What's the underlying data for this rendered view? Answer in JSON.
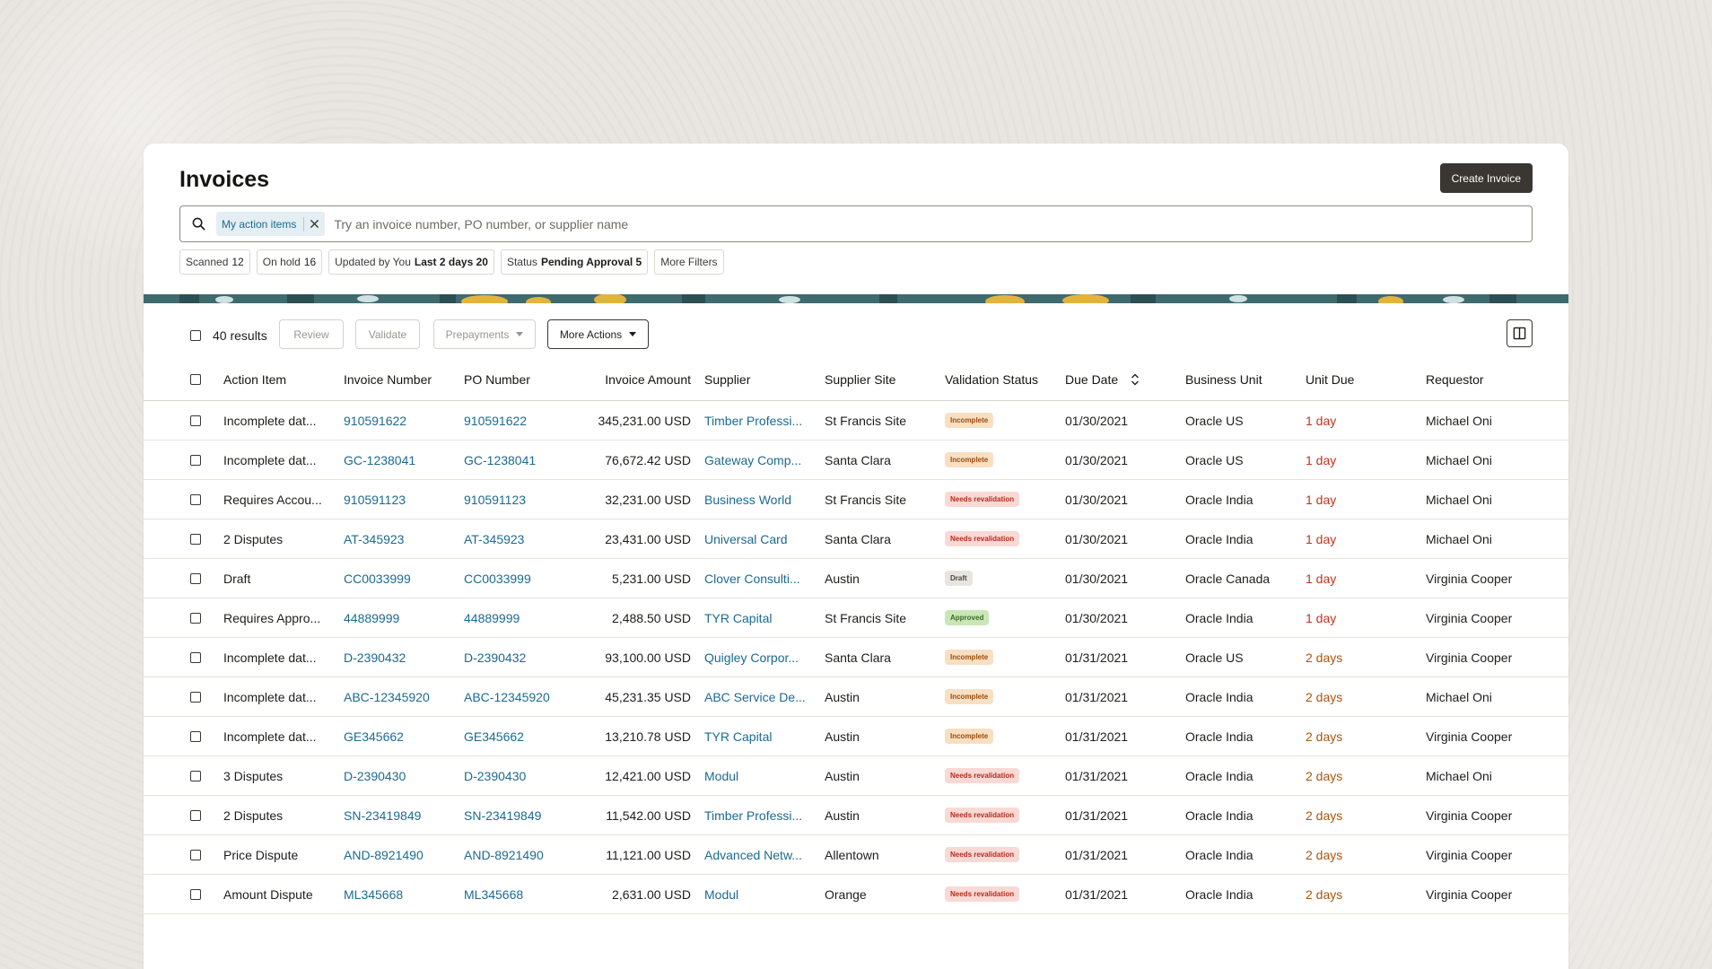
{
  "page": {
    "title": "Invoices",
    "create_button": "Create Invoice"
  },
  "search": {
    "chip_label": "My action items",
    "placeholder": "Try an invoice number, PO number, or supplier name"
  },
  "filters": [
    {
      "label": "Scanned",
      "value": "12",
      "bold": false
    },
    {
      "label": "On hold",
      "value": "16",
      "bold": false
    },
    {
      "label": "Updated by You",
      "value": "Last 2 days 20",
      "bold": true
    },
    {
      "label": "Status",
      "value": "Pending Approval 5",
      "bold": true
    },
    {
      "label": "More Filters",
      "value": "",
      "bold": false
    }
  ],
  "toolbar": {
    "results": "40 results",
    "review": "Review",
    "validate": "Validate",
    "prepayments": "Prepayments",
    "more_actions": "More Actions"
  },
  "columns": {
    "action_item": "Action Item",
    "invoice_number": "Invoice Number",
    "po_number": "PO Number",
    "invoice_amount": "Invoice Amount",
    "supplier": "Supplier",
    "supplier_site": "Supplier Site",
    "validation_status": "Validation Status",
    "due_date": "Due Date",
    "business_unit": "Business Unit",
    "unit_due": "Unit Due",
    "requestor": "Requestor"
  },
  "rows": [
    {
      "action": "Incomplete dat...",
      "invoice": "910591622",
      "po": "910591622",
      "amount": "345,231.00 USD",
      "supplier": "Timber Professi...",
      "site": "St Francis Site",
      "status": "Incomplete",
      "status_type": "incomplete",
      "due": "01/30/2021",
      "bu": "Oracle US",
      "unit_due": "1 day",
      "unit_type": "red",
      "requestor": "Michael Oni"
    },
    {
      "action": "Incomplete dat...",
      "invoice": "GC-1238041",
      "po": "GC-1238041",
      "amount": "76,672.42 USD",
      "supplier": "Gateway Comp...",
      "site": "Santa Clara",
      "status": "Incomplete",
      "status_type": "incomplete",
      "due": "01/30/2021",
      "bu": "Oracle US",
      "unit_due": "1 day",
      "unit_type": "red",
      "requestor": "Michael Oni"
    },
    {
      "action": "Requires Accou...",
      "invoice": "910591123",
      "po": "910591123",
      "amount": "32,231.00 USD",
      "supplier": "Business World",
      "site": "St Francis Site",
      "status": "Needs revalidation",
      "status_type": "needs",
      "due": "01/30/2021",
      "bu": "Oracle India",
      "unit_due": "1 day",
      "unit_type": "red",
      "requestor": "Michael Oni"
    },
    {
      "action": "2 Disputes",
      "invoice": "AT-345923",
      "po": "AT-345923",
      "amount": "23,431.00 USD",
      "supplier": "Universal Card",
      "site": "Santa Clara",
      "status": "Needs revalidation",
      "status_type": "needs",
      "due": "01/30/2021",
      "bu": "Oracle India",
      "unit_due": "1 day",
      "unit_type": "red",
      "requestor": "Michael Oni"
    },
    {
      "action": "Draft",
      "invoice": "CC0033999",
      "po": "CC0033999",
      "amount": "5,231.00 USD",
      "supplier": "Clover Consulti...",
      "site": "Austin",
      "status": "Draft",
      "status_type": "draft",
      "due": "01/30/2021",
      "bu": "Oracle Canada",
      "unit_due": "1 day",
      "unit_type": "red",
      "requestor": "Virginia Cooper"
    },
    {
      "action": "Requires Appro...",
      "invoice": "44889999",
      "po": "44889999",
      "amount": "2,488.50 USD",
      "supplier": "TYR Capital",
      "site": "St Francis Site",
      "status": "Approved",
      "status_type": "approved",
      "due": "01/30/2021",
      "bu": "Oracle India",
      "unit_due": "1 day",
      "unit_type": "red",
      "requestor": "Virginia Cooper"
    },
    {
      "action": "Incomplete dat...",
      "invoice": "D-2390432",
      "po": "D-2390432",
      "amount": "93,100.00 USD",
      "supplier": "Quigley Corpor...",
      "site": "Santa Clara",
      "status": "Incomplete",
      "status_type": "incomplete",
      "due": "01/31/2021",
      "bu": "Oracle US",
      "unit_due": "2 days",
      "unit_type": "orange",
      "requestor": "Virginia Cooper"
    },
    {
      "action": "Incomplete dat...",
      "invoice": "ABC-12345920",
      "po": "ABC-12345920",
      "amount": "45,231.35 USD",
      "supplier": "ABC Service De...",
      "site": "Austin",
      "status": "Incomplete",
      "status_type": "incomplete",
      "due": "01/31/2021",
      "bu": "Oracle India",
      "unit_due": "2 days",
      "unit_type": "orange",
      "requestor": "Michael Oni"
    },
    {
      "action": "Incomplete dat...",
      "invoice": "GE345662",
      "po": "GE345662",
      "amount": "13,210.78 USD",
      "supplier": "TYR Capital",
      "site": "Austin",
      "status": "Incomplete",
      "status_type": "incomplete",
      "due": "01/31/2021",
      "bu": "Oracle India",
      "unit_due": "2 days",
      "unit_type": "orange",
      "requestor": "Virginia Cooper"
    },
    {
      "action": "3 Disputes",
      "invoice": "D-2390430",
      "po": "D-2390430",
      "amount": "12,421.00 USD",
      "supplier": "Modul",
      "site": "Austin",
      "status": "Needs revalidation",
      "status_type": "needs",
      "due": "01/31/2021",
      "bu": "Oracle India",
      "unit_due": "2 days",
      "unit_type": "orange",
      "requestor": "Michael Oni"
    },
    {
      "action": "2 Disputes",
      "invoice": "SN-23419849",
      "po": "SN-23419849",
      "amount": "11,542.00 USD",
      "supplier": "Timber Professi...",
      "site": "Austin",
      "status": "Needs revalidation",
      "status_type": "needs",
      "due": "01/31/2021",
      "bu": "Oracle India",
      "unit_due": "2 days",
      "unit_type": "orange",
      "requestor": "Virginia Cooper"
    },
    {
      "action": "Price Dispute",
      "invoice": "AND-8921490",
      "po": "AND-8921490",
      "amount": "11,121.00 USD",
      "supplier": "Advanced Netw...",
      "site": "Allentown",
      "status": "Needs revalidation",
      "status_type": "needs",
      "due": "01/31/2021",
      "bu": "Oracle India",
      "unit_due": "2 days",
      "unit_type": "orange",
      "requestor": "Virginia Cooper"
    },
    {
      "action": "Amount Dispute",
      "invoice": "ML345668",
      "po": "ML345668",
      "amount": "2,631.00 USD",
      "supplier": "Modul",
      "site": "Orange",
      "status": "Needs revalidation",
      "status_type": "needs",
      "due": "01/31/2021",
      "bu": "Oracle India",
      "unit_due": "2 days",
      "unit_type": "orange",
      "requestor": "Virginia Cooper"
    }
  ],
  "colors": {
    "link": "#1c6a8f",
    "primary_button": "#3a3632",
    "due_red": "#c4321e",
    "due_orange": "#a8560f",
    "banner_teal": "#3f6a6e",
    "banner_yellow": "#e3b43b"
  }
}
